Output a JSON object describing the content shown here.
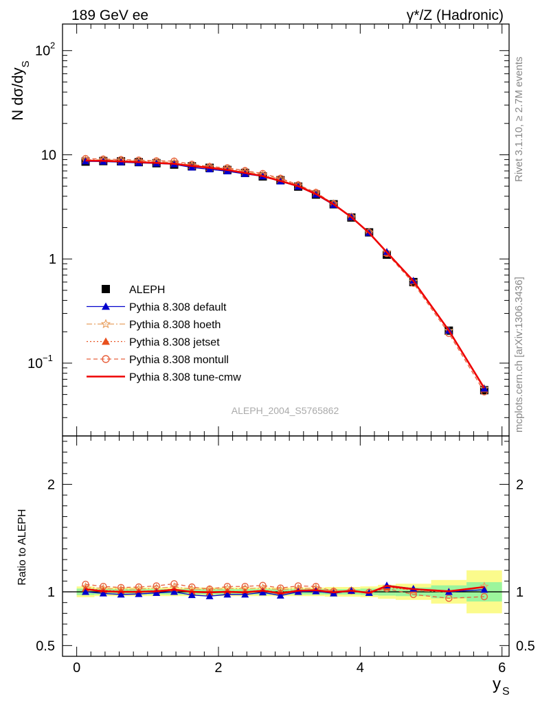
{
  "header": {
    "left": "189 GeV ee",
    "right": "γ*/Z (Hadronic)"
  },
  "side_text": {
    "rivet": "Rivet 3.1.10, ≥ 2.7M events",
    "mcplots": "mcplots.cern.ch [arXiv:1306.3436]"
  },
  "analysis_label": "ALEPH_2004_S5765862",
  "colors": {
    "data": "#000000",
    "default": "#0000cc",
    "hoeth": "#e8a060",
    "jetset": "#e8501e",
    "montull": "#e8603c",
    "tunecmw": "#ee0000",
    "band_inner": "#9cf59c",
    "band_outer": "#fbfb8c"
  },
  "chart_data": [
    {
      "type": "scatter",
      "panel": "main",
      "ylabel_main": "N dσ/dy",
      "ylabel_sub": "S",
      "yscale": "log",
      "xlim": [
        -0.2,
        6.1
      ],
      "ylim": [
        0.02,
        180
      ],
      "y_tick_labels": [
        "10",
        "10",
        "10",
        "1"
      ],
      "y_tick_exponents": [
        "2",
        "−1"
      ],
      "legend_position": "center-left",
      "x": [
        0.125,
        0.375,
        0.625,
        0.875,
        1.125,
        1.375,
        1.625,
        1.875,
        2.125,
        2.375,
        2.625,
        2.875,
        3.125,
        3.375,
        3.625,
        3.875,
        4.125,
        4.375,
        4.75,
        5.25,
        5.75
      ],
      "series": [
        {
          "name": "ALEPH",
          "key": "data",
          "marker": "square",
          "values": [
            8.6,
            8.7,
            8.65,
            8.5,
            8.3,
            8.05,
            7.75,
            7.5,
            7.15,
            6.7,
            6.2,
            5.7,
            4.95,
            4.15,
            3.35,
            2.5,
            1.8,
            1.1,
            0.6,
            0.205,
            0.055
          ]
        },
        {
          "name": "Pythia 8.308 default",
          "key": "default",
          "marker": "triangle",
          "dash": "solid",
          "values": [
            8.65,
            8.6,
            8.5,
            8.35,
            8.25,
            8.1,
            7.55,
            7.25,
            6.95,
            6.55,
            6.2,
            5.55,
            4.95,
            4.15,
            3.3,
            2.52,
            1.78,
            1.17,
            0.62,
            0.205,
            0.057
          ]
        },
        {
          "name": "Pythia 8.308 hoeth",
          "key": "hoeth",
          "marker": "star",
          "dash": "dashdot",
          "values": [
            9.0,
            8.95,
            8.85,
            8.7,
            8.6,
            8.45,
            7.95,
            7.65,
            7.35,
            6.9,
            6.45,
            5.85,
            5.1,
            4.3,
            3.38,
            2.53,
            1.8,
            1.16,
            0.61,
            0.205,
            0.057
          ]
        },
        {
          "name": "Pythia 8.308 jetset",
          "key": "jetset",
          "marker": "triangle",
          "dash": "dotted",
          "values": [
            8.85,
            8.8,
            8.7,
            8.55,
            8.4,
            8.25,
            7.8,
            7.5,
            7.2,
            6.75,
            6.3,
            5.7,
            5.05,
            4.25,
            3.35,
            2.52,
            1.79,
            1.14,
            0.61,
            0.205,
            0.056
          ]
        },
        {
          "name": "Pythia 8.308 montull",
          "key": "montull",
          "marker": "circle",
          "dash": "dashed",
          "values": [
            9.2,
            9.1,
            9.0,
            8.9,
            8.75,
            8.7,
            8.1,
            7.7,
            7.5,
            7.05,
            6.6,
            5.95,
            5.15,
            4.35,
            3.38,
            2.53,
            1.8,
            1.13,
            0.585,
            0.193,
            0.053
          ]
        },
        {
          "name": "Pythia 8.308 tune-cmw",
          "key": "tunecmw",
          "marker": "none",
          "dash": "solid",
          "values": [
            8.8,
            8.75,
            8.65,
            8.5,
            8.35,
            8.2,
            7.8,
            7.5,
            7.15,
            6.7,
            6.25,
            5.6,
            5.0,
            4.2,
            3.35,
            2.52,
            1.78,
            1.16,
            0.615,
            0.206,
            0.0575
          ]
        }
      ]
    },
    {
      "type": "line",
      "panel": "ratio",
      "ylabel": "Ratio to ALEPH",
      "xlabel_main": "y",
      "xlabel_sub": "S",
      "xlim": [
        -0.2,
        6.1
      ],
      "ylim": [
        0.4,
        2.45
      ],
      "x_tick_labels": [
        "0",
        "2",
        "4",
        "6"
      ],
      "y_tick_labels": [
        "0.5",
        "1",
        "2"
      ],
      "bands": {
        "bins": [
          [
            0.0,
            0.25
          ],
          [
            0.25,
            0.5
          ],
          [
            0.5,
            0.75
          ],
          [
            0.75,
            1.0
          ],
          [
            1.0,
            1.25
          ],
          [
            1.25,
            1.5
          ],
          [
            1.5,
            1.75
          ],
          [
            1.75,
            2.0
          ],
          [
            2.0,
            2.25
          ],
          [
            2.25,
            2.5
          ],
          [
            2.5,
            2.75
          ],
          [
            2.75,
            3.0
          ],
          [
            3.0,
            3.25
          ],
          [
            3.25,
            3.5
          ],
          [
            3.5,
            3.75
          ],
          [
            3.75,
            4.0
          ],
          [
            4.0,
            4.25
          ],
          [
            4.25,
            4.5
          ],
          [
            4.5,
            5.0
          ],
          [
            5.0,
            5.5
          ],
          [
            5.5,
            6.0
          ]
        ],
        "inner": [
          0.03,
          0.025,
          0.025,
          0.025,
          0.025,
          0.025,
          0.025,
          0.025,
          0.025,
          0.025,
          0.025,
          0.025,
          0.025,
          0.025,
          0.025,
          0.025,
          0.03,
          0.035,
          0.04,
          0.06,
          0.09
        ],
        "outer": [
          0.05,
          0.04,
          0.04,
          0.04,
          0.04,
          0.04,
          0.04,
          0.04,
          0.04,
          0.04,
          0.04,
          0.04,
          0.04,
          0.04,
          0.045,
          0.045,
          0.05,
          0.065,
          0.075,
          0.11,
          0.2
        ]
      },
      "x": [
        0.125,
        0.375,
        0.625,
        0.875,
        1.125,
        1.375,
        1.625,
        1.875,
        2.125,
        2.375,
        2.625,
        2.875,
        3.125,
        3.375,
        3.625,
        3.875,
        4.125,
        4.375,
        4.75,
        5.25,
        5.75
      ],
      "series": [
        {
          "key": "default",
          "values": [
            1.0,
            0.985,
            0.975,
            0.98,
            0.99,
            1.0,
            0.97,
            0.96,
            0.975,
            0.975,
            0.995,
            0.965,
            1.0,
            1.005,
            0.985,
            1.01,
            0.99,
            1.06,
            1.03,
            1.0,
            1.02
          ]
        },
        {
          "key": "hoeth",
          "values": [
            1.045,
            1.03,
            1.025,
            1.025,
            1.035,
            1.045,
            1.025,
            1.02,
            1.03,
            1.03,
            1.035,
            1.02,
            1.03,
            1.035,
            1.005,
            1.01,
            0.995,
            1.05,
            1.01,
            1.0,
            1.05
          ]
        },
        {
          "key": "jetset",
          "values": [
            1.03,
            1.015,
            1.005,
            1.005,
            1.01,
            1.025,
            1.0,
            0.995,
            1.005,
            1.0,
            1.015,
            0.995,
            1.015,
            1.02,
            1.0,
            1.01,
            0.99,
            1.04,
            1.02,
            1.0,
            1.02
          ]
        },
        {
          "key": "montull",
          "values": [
            1.07,
            1.05,
            1.04,
            1.045,
            1.055,
            1.075,
            1.045,
            1.025,
            1.05,
            1.05,
            1.06,
            1.035,
            1.055,
            1.05,
            1.005,
            1.01,
            0.995,
            1.03,
            0.975,
            0.94,
            0.955
          ]
        },
        {
          "key": "tunecmw",
          "values": [
            1.025,
            1.005,
            1.0,
            1.0,
            1.005,
            1.02,
            1.0,
            0.995,
            1.0,
            0.995,
            1.01,
            0.985,
            1.01,
            1.015,
            0.995,
            1.01,
            0.99,
            1.055,
            1.025,
            1.005,
            1.045
          ]
        }
      ]
    }
  ]
}
